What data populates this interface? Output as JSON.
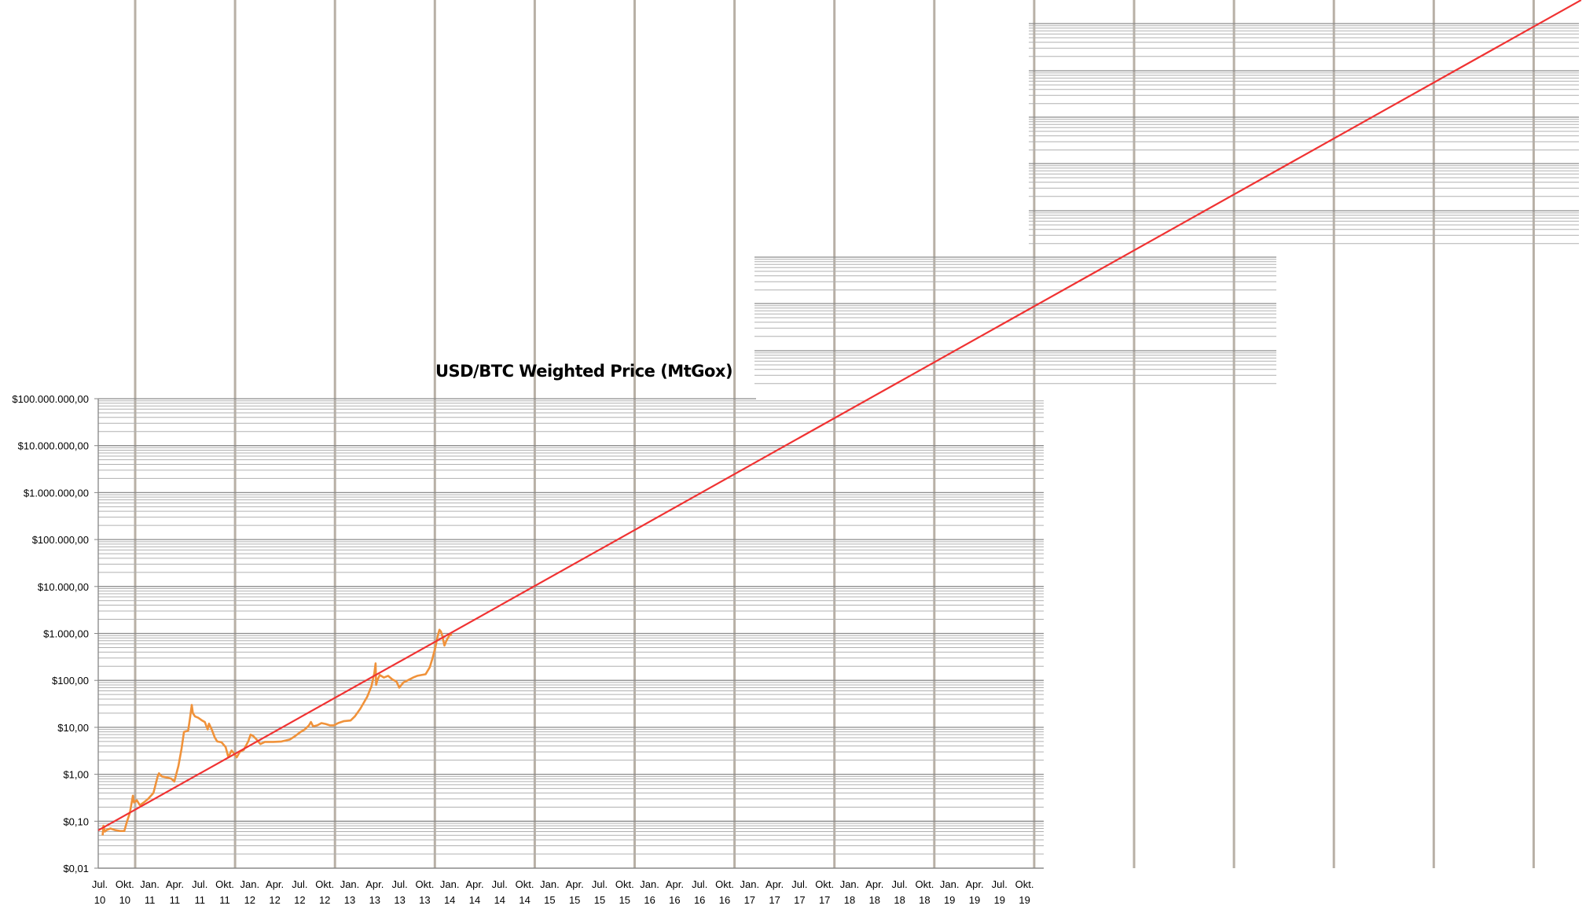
{
  "chart_data": {
    "type": "line",
    "title": "USD/BTC Weighted Price (MtGox)",
    "xlabel": "",
    "ylabel": "",
    "y_scale": "log",
    "ylim": [
      0.01,
      100000000
    ],
    "xlim": [
      "2010-07-01",
      "2019-10-01"
    ],
    "grid": true,
    "legend": "none",
    "colors": {
      "price": "#f0923a",
      "trend": "#f03232",
      "major_grid": "#8c8c8c",
      "minor_grid": "#b0b0b0",
      "vertical_grid": "#b8b0a6"
    },
    "y_tick_labels": [
      {
        "value": 100000000,
        "label": "$100.000.000,00"
      },
      {
        "value": 10000000,
        "label": "$10.000.000,00"
      },
      {
        "value": 1000000,
        "label": "$1.000.000,00"
      },
      {
        "value": 100000,
        "label": "$100.000,00"
      },
      {
        "value": 10000,
        "label": "$10.000,00"
      },
      {
        "value": 1000,
        "label": "$1.000,00"
      },
      {
        "value": 100,
        "label": "$100,00"
      },
      {
        "value": 10,
        "label": "$10,00"
      },
      {
        "value": 1,
        "label": "$1,00"
      },
      {
        "value": 0.1,
        "label": "$0,10"
      },
      {
        "value": 0.01,
        "label": "$0,01"
      }
    ],
    "x_tick_labels": [
      [
        "Jul.",
        "10"
      ],
      [
        "Okt.",
        "10"
      ],
      [
        "Jan.",
        "11"
      ],
      [
        "Apr.",
        "11"
      ],
      [
        "Jul.",
        "11"
      ],
      [
        "Okt.",
        "11"
      ],
      [
        "Jan.",
        "12"
      ],
      [
        "Apr.",
        "12"
      ],
      [
        "Jul.",
        "12"
      ],
      [
        "Okt.",
        "12"
      ],
      [
        "Jan.",
        "13"
      ],
      [
        "Apr.",
        "13"
      ],
      [
        "Jul.",
        "13"
      ],
      [
        "Okt.",
        "13"
      ],
      [
        "Jan.",
        "14"
      ],
      [
        "Apr.",
        "14"
      ],
      [
        "Jul.",
        "14"
      ],
      [
        "Okt.",
        "14"
      ],
      [
        "Jan.",
        "15"
      ],
      [
        "Apr.",
        "15"
      ],
      [
        "Jul.",
        "15"
      ],
      [
        "Okt.",
        "15"
      ],
      [
        "Jan.",
        "16"
      ],
      [
        "Apr.",
        "16"
      ],
      [
        "Jul.",
        "16"
      ],
      [
        "Okt.",
        "16"
      ],
      [
        "Jan.",
        "17"
      ],
      [
        "Apr.",
        "17"
      ],
      [
        "Jul.",
        "17"
      ],
      [
        "Okt.",
        "17"
      ],
      [
        "Jan.",
        "18"
      ],
      [
        "Apr.",
        "18"
      ],
      [
        "Jul.",
        "18"
      ],
      [
        "Okt.",
        "18"
      ],
      [
        "Jan.",
        "19"
      ],
      [
        "Apr.",
        "19"
      ],
      [
        "Jul.",
        "19"
      ],
      [
        "Okt.",
        "19"
      ]
    ],
    "series": [
      {
        "kind": "price",
        "points": [
          [
            "2010-07-17",
            0.05
          ],
          [
            "2010-07-20",
            0.08
          ],
          [
            "2010-07-25",
            0.06
          ],
          [
            "2010-08-01",
            0.065
          ],
          [
            "2010-08-15",
            0.07
          ],
          [
            "2010-09-01",
            0.065
          ],
          [
            "2010-09-20",
            0.062
          ],
          [
            "2010-10-05",
            0.062
          ],
          [
            "2010-10-15",
            0.1
          ],
          [
            "2010-10-25",
            0.15
          ],
          [
            "2010-11-06",
            0.35
          ],
          [
            "2010-11-10",
            0.25
          ],
          [
            "2010-11-20",
            0.28
          ],
          [
            "2010-12-01",
            0.22
          ],
          [
            "2010-12-15",
            0.25
          ],
          [
            "2011-01-01",
            0.3
          ],
          [
            "2011-01-20",
            0.4
          ],
          [
            "2011-02-05",
            0.9
          ],
          [
            "2011-02-10",
            1.05
          ],
          [
            "2011-02-20",
            0.9
          ],
          [
            "2011-03-10",
            0.85
          ],
          [
            "2011-03-25",
            0.8
          ],
          [
            "2011-04-05",
            0.7
          ],
          [
            "2011-04-20",
            1.5
          ],
          [
            "2011-05-01",
            3.5
          ],
          [
            "2011-05-10",
            8
          ],
          [
            "2011-05-25",
            8.5
          ],
          [
            "2011-06-01",
            15
          ],
          [
            "2011-06-08",
            30
          ],
          [
            "2011-06-12",
            20
          ],
          [
            "2011-06-20",
            17
          ],
          [
            "2011-07-01",
            16
          ],
          [
            "2011-07-15",
            14
          ],
          [
            "2011-07-25",
            13
          ],
          [
            "2011-08-05",
            9
          ],
          [
            "2011-08-10",
            12
          ],
          [
            "2011-08-20",
            9
          ],
          [
            "2011-09-01",
            6
          ],
          [
            "2011-09-10",
            5
          ],
          [
            "2011-09-25",
            4.8
          ],
          [
            "2011-10-10",
            3.8
          ],
          [
            "2011-10-20",
            2.3
          ],
          [
            "2011-11-01",
            3.2
          ],
          [
            "2011-11-10",
            2.8
          ],
          [
            "2011-11-20",
            2.3
          ],
          [
            "2011-12-01",
            3
          ],
          [
            "2011-12-15",
            3.3
          ],
          [
            "2012-01-01",
            5
          ],
          [
            "2012-01-10",
            7
          ],
          [
            "2012-01-20",
            6.5
          ],
          [
            "2012-02-01",
            5.5
          ],
          [
            "2012-02-15",
            4.4
          ],
          [
            "2012-03-01",
            4.9
          ],
          [
            "2012-04-01",
            4.9
          ],
          [
            "2012-05-01",
            5
          ],
          [
            "2012-06-01",
            5.5
          ],
          [
            "2012-06-20",
            6.5
          ],
          [
            "2012-07-10",
            8
          ],
          [
            "2012-07-25",
            9
          ],
          [
            "2012-08-10",
            11
          ],
          [
            "2012-08-17",
            13
          ],
          [
            "2012-08-25",
            10.5
          ],
          [
            "2012-09-10",
            11
          ],
          [
            "2012-09-25",
            12.3
          ],
          [
            "2012-10-10",
            11.8
          ],
          [
            "2012-10-25",
            11
          ],
          [
            "2012-11-10",
            11
          ],
          [
            "2012-11-25",
            12.3
          ],
          [
            "2012-12-15",
            13.5
          ],
          [
            "2013-01-10",
            14
          ],
          [
            "2013-01-25",
            17
          ],
          [
            "2013-02-15",
            25
          ],
          [
            "2013-03-10",
            45
          ],
          [
            "2013-03-25",
            75
          ],
          [
            "2013-04-05",
            140
          ],
          [
            "2013-04-10",
            230
          ],
          [
            "2013-04-12",
            80
          ],
          [
            "2013-04-16",
            100
          ],
          [
            "2013-04-25",
            130
          ],
          [
            "2013-05-10",
            115
          ],
          [
            "2013-05-25",
            125
          ],
          [
            "2013-06-10",
            105
          ],
          [
            "2013-06-25",
            95
          ],
          [
            "2013-07-05",
            70
          ],
          [
            "2013-07-20",
            90
          ],
          [
            "2013-08-05",
            100
          ],
          [
            "2013-08-25",
            115
          ],
          [
            "2013-09-10",
            125
          ],
          [
            "2013-09-25",
            130
          ],
          [
            "2013-10-10",
            135
          ],
          [
            "2013-10-25",
            190
          ],
          [
            "2013-11-05",
            300
          ],
          [
            "2013-11-15",
            500
          ],
          [
            "2013-11-22",
            800
          ],
          [
            "2013-11-30",
            1200
          ],
          [
            "2013-12-05",
            1100
          ],
          [
            "2013-12-10",
            900
          ],
          [
            "2013-12-18",
            550
          ],
          [
            "2013-12-25",
            700
          ],
          [
            "2014-01-05",
            900
          ],
          [
            "2014-01-15",
            950
          ]
        ]
      },
      {
        "kind": "trend",
        "points": [
          [
            "2010-07-01",
            0.064
          ],
          [
            "2025-05-01",
            31000000000000000
          ]
        ]
      }
    ]
  }
}
